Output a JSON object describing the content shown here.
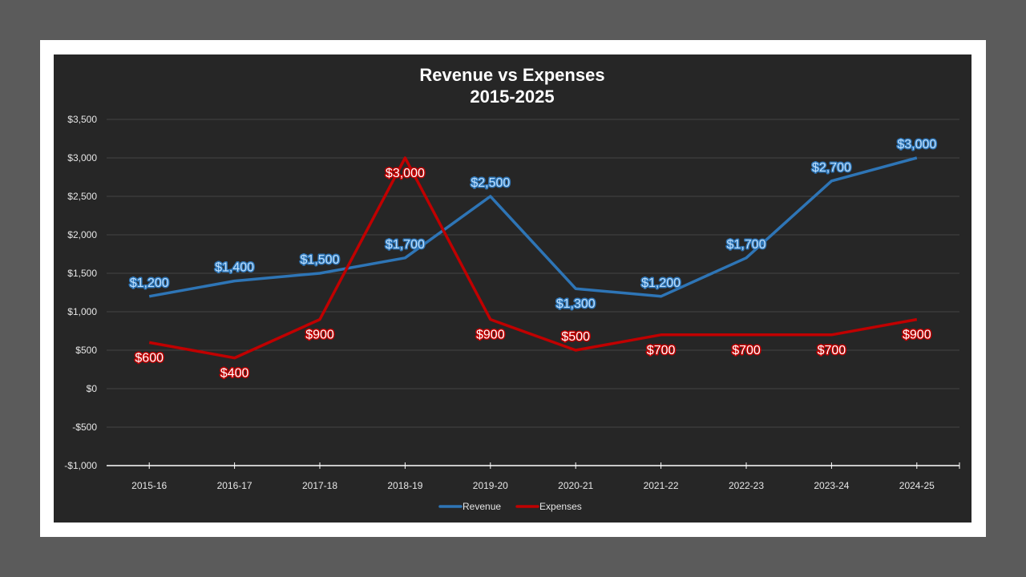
{
  "chart_data": {
    "type": "line",
    "title": [
      "Revenue vs Expenses",
      "2015-2025"
    ],
    "xlabel": "",
    "ylabel": "",
    "categories": [
      "2015-16",
      "2016-17",
      "2017-18",
      "2018-19",
      "2019-20",
      "2020-21",
      "2021-22",
      "2022-23",
      "2023-24",
      "2024-25"
    ],
    "ylim": [
      -1000,
      3500
    ],
    "yticks": [
      -1000,
      -500,
      0,
      500,
      1000,
      1500,
      2000,
      2500,
      3000,
      3500
    ],
    "ytick_labels": [
      "-$1,000",
      "-$500",
      "$0",
      "$500",
      "$1,000",
      "$1,500",
      "$2,000",
      "$2,500",
      "$3,000",
      "$3,500"
    ],
    "grid": true,
    "legend": "bottom",
    "series": [
      {
        "name": "Revenue",
        "color": "#2e75b6",
        "label_color": "#bde0ff",
        "values": [
          1200,
          1400,
          1500,
          1700,
          2500,
          1300,
          1200,
          1700,
          2700,
          3000
        ],
        "labels": [
          "$1,200",
          "$1,400",
          "$1,500",
          "$1,700",
          "$2,500",
          "$1,300",
          "$1,200",
          "$1,700",
          "$2,700",
          "$3,000"
        ],
        "label_pos": [
          "above",
          "above",
          "above",
          "above",
          "above",
          "below",
          "above",
          "above",
          "above",
          "above"
        ]
      },
      {
        "name": "Expenses",
        "color": "#c00000",
        "label_color": "#ffffff",
        "values": [
          600,
          400,
          900,
          3000,
          900,
          500,
          700,
          700,
          700,
          900
        ],
        "labels": [
          "$600",
          "$400",
          "$900",
          "$3,000",
          "$900",
          "$500",
          "$700",
          "$700",
          "$700",
          "$900"
        ],
        "label_pos": [
          "below",
          "below",
          "below",
          "below",
          "below",
          "above",
          "below",
          "below",
          "below",
          "below"
        ]
      }
    ],
    "background": "#262626"
  }
}
